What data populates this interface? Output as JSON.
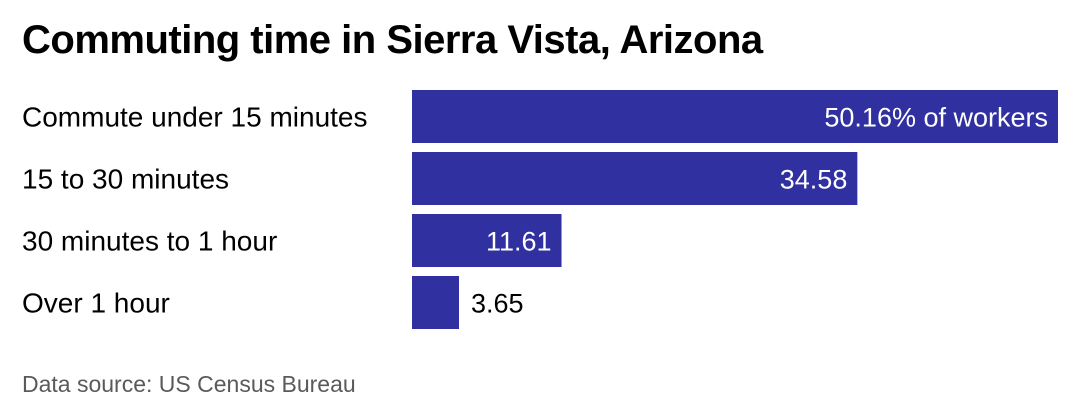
{
  "chart_data": {
    "type": "bar",
    "orientation": "horizontal",
    "title": "Commuting time in Sierra Vista, Arizona",
    "categories": [
      "Commute under 15 minutes",
      "15 to 30 minutes",
      "30 minutes to 1 hour",
      "Over 1 hour"
    ],
    "values": [
      50.16,
      34.58,
      11.61,
      3.65
    ],
    "value_labels": [
      "50.16% of workers",
      "34.58",
      "11.61",
      "3.65"
    ],
    "unit": "% of workers",
    "xlim": [
      0,
      50.16
    ],
    "bar_color": "#3130a0",
    "grid": false,
    "legend": "none",
    "source": "Data source: US Census Bureau"
  }
}
